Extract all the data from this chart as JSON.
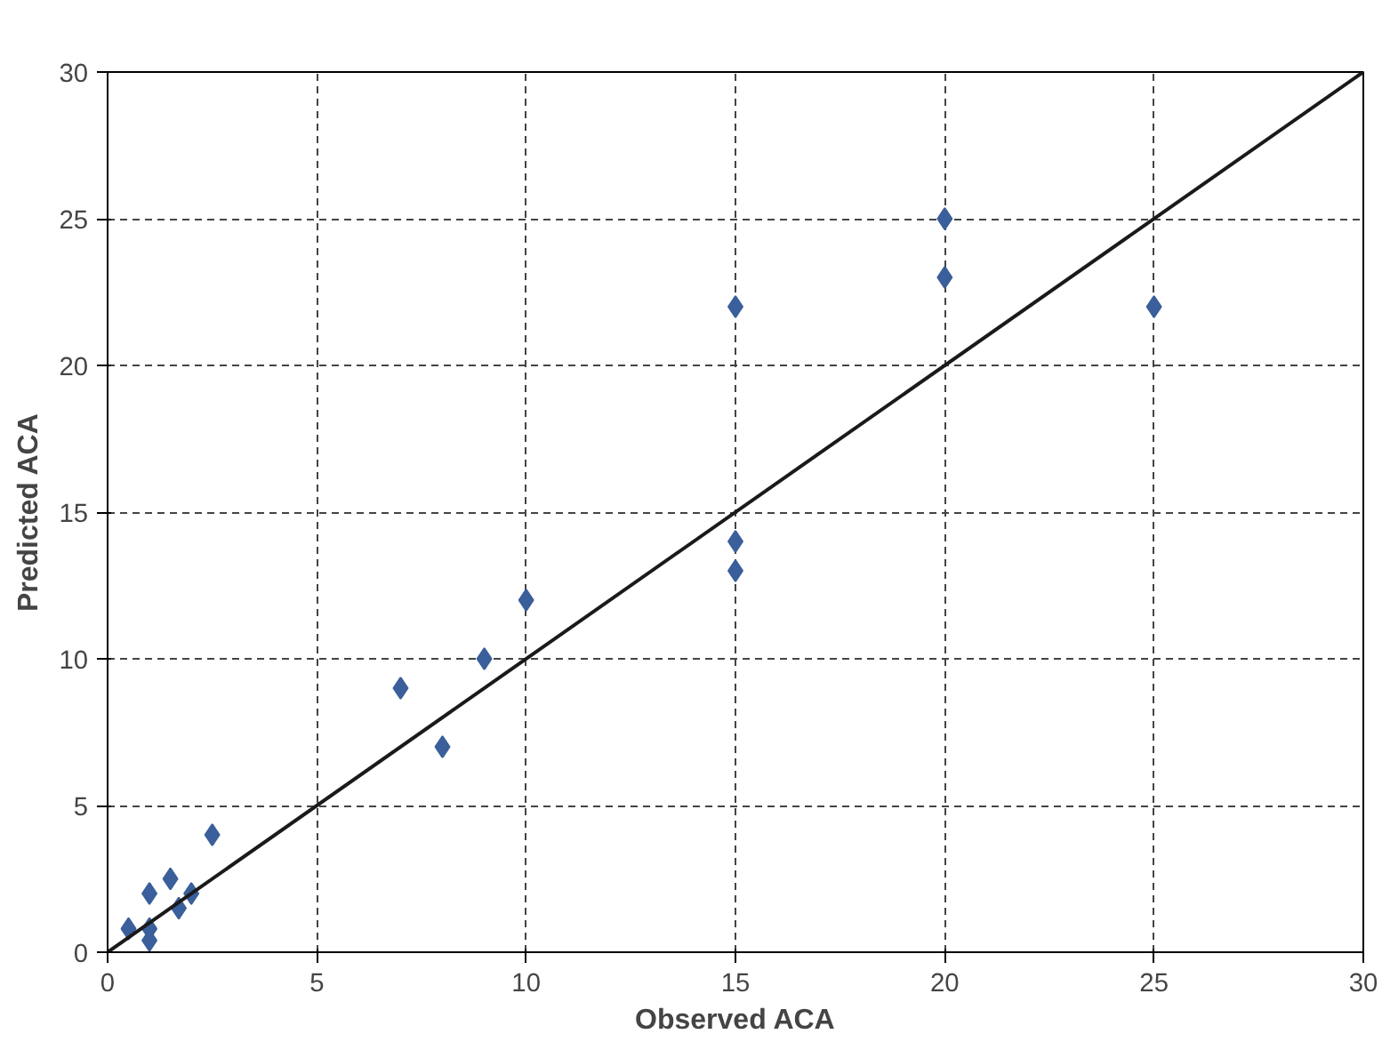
{
  "chart_data": {
    "type": "scatter",
    "xlabel": "Observed ACA",
    "ylabel": "Predicted ACA",
    "xlim": [
      0,
      30
    ],
    "ylim": [
      0,
      30
    ],
    "xticks": [
      0,
      5,
      10,
      15,
      20,
      25,
      30
    ],
    "yticks": [
      0,
      5,
      10,
      15,
      20,
      25,
      30
    ],
    "grid": true,
    "marker": "diamond",
    "series": [
      {
        "color": "#3a5f9a",
        "x": [
          0.5,
          1,
          1,
          1,
          1.5,
          1.7,
          2,
          2.5,
          7,
          8,
          9,
          10,
          15,
          15,
          15,
          20,
          20,
          25
        ],
        "values": [
          0.8,
          2,
          0.8,
          0.4,
          2.5,
          1.5,
          2,
          4,
          9,
          7,
          10,
          12,
          22,
          14,
          13,
          25,
          23,
          22
        ]
      },
      {
        "type": "line",
        "color": "#1a1a1a",
        "x": [
          0,
          30
        ],
        "values": [
          0,
          30
        ],
        "line_style": "solid",
        "marker": "none"
      }
    ]
  }
}
